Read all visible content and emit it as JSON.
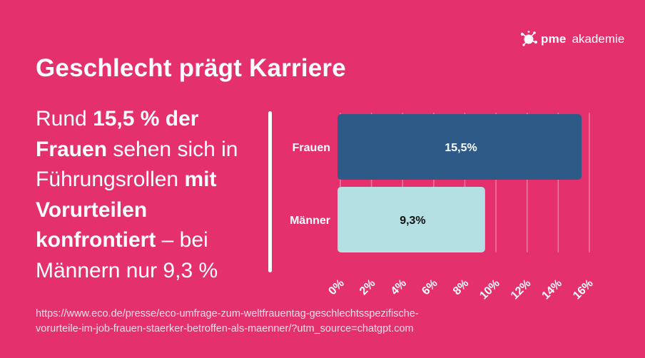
{
  "logo": {
    "brand": "pme",
    "name": "akademie"
  },
  "title": "Geschlecht prägt Karriere",
  "statement": {
    "p1": "Rund ",
    "b1": "15,5 % der Frauen",
    "p2": " sehen sich in Führungsrollen ",
    "b2": "mit Vorurteilen konfrontiert",
    "p3": " – bei Männern nur 9,3 %"
  },
  "source": {
    "line1": "https://www.eco.de/presse/eco-umfrage-zum-weltfrauentag-geschlechtsspezifische-",
    "line2": "vorurteile-im-job-frauen-staerker-betroffen-als-maenner/?utm_source=chatgpt.com"
  },
  "colors": {
    "background": "#e4306c",
    "frauen_bar": "#2d5a87",
    "maenner_bar": "#b4dfe3",
    "text": "#ffffff",
    "gridline": "#f27aa1"
  },
  "chart_data": {
    "type": "bar",
    "orientation": "horizontal",
    "categories": [
      "Frauen",
      "Männer"
    ],
    "values": [
      15.5,
      9.3
    ],
    "data_labels": [
      "15,5%",
      "9,3%"
    ],
    "xlim": [
      0,
      16
    ],
    "xticks": [
      0,
      2,
      4,
      6,
      8,
      10,
      12,
      14,
      16
    ],
    "xtick_labels": [
      "0%",
      "2%",
      "4%",
      "6%",
      "8%",
      "10%",
      "12%",
      "14%",
      "16%"
    ],
    "title": "",
    "xlabel": "",
    "ylabel": "",
    "grid": true,
    "legend": "none"
  }
}
